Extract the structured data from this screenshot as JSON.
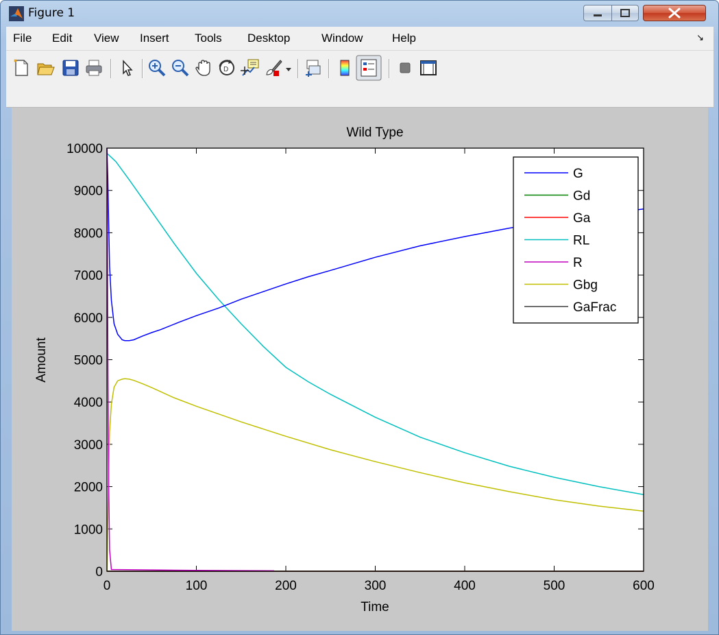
{
  "window": {
    "title": "Figure 1",
    "controls": [
      "minimize",
      "maximize",
      "close"
    ]
  },
  "menu": [
    "File",
    "Edit",
    "View",
    "Insert",
    "Tools",
    "Desktop",
    "Window",
    "Help"
  ],
  "toolbar": {
    "icons": [
      "new-file-icon",
      "open-folder-icon",
      "save-icon",
      "print-icon",
      "pointer-icon",
      "zoom-in-icon",
      "zoom-out-icon",
      "pan-hand-icon",
      "rotate-3d-icon",
      "data-cursor-icon",
      "brush-icon",
      "link-plot-icon",
      "colorbar-icon",
      "legend-icon",
      "hide-plot-tools-icon",
      "show-plot-tools-icon"
    ]
  },
  "colors": {
    "G": "#0000ff",
    "Gd": "#008000",
    "Ga": "#ff0000",
    "RL": "#00bfbf",
    "R": "#bf00bf",
    "Gbg": "#bfbf00",
    "GaFrac": "#404040",
    "figure_bg": "#c8c8c8",
    "axes_bg": "#ffffff"
  },
  "chart_data": {
    "type": "line",
    "title": "Wild Type",
    "xlabel": "Time",
    "ylabel": "Amount",
    "xlim": [
      0,
      600
    ],
    "ylim": [
      0,
      10000
    ],
    "xticks": [
      0,
      100,
      200,
      300,
      400,
      500,
      600
    ],
    "yticks": [
      0,
      1000,
      2000,
      3000,
      4000,
      5000,
      6000,
      7000,
      8000,
      9000,
      10000
    ],
    "grid": false,
    "legend_position": "top-right",
    "series": [
      {
        "name": "G",
        "x": [
          0,
          1,
          2,
          3,
          5,
          8,
          12,
          17,
          20,
          25,
          30,
          40,
          50,
          60,
          80,
          100,
          125,
          150,
          175,
          200,
          225,
          250,
          300,
          350,
          400,
          450,
          500,
          550,
          600
        ],
        "y": [
          10000,
          9300,
          8200,
          7200,
          6400,
          5850,
          5600,
          5470,
          5450,
          5450,
          5470,
          5560,
          5640,
          5710,
          5880,
          6040,
          6220,
          6430,
          6610,
          6790,
          6960,
          7110,
          7420,
          7690,
          7910,
          8110,
          8280,
          8430,
          8560
        ]
      },
      {
        "name": "Gd",
        "x": [
          0,
          600
        ],
        "y": [
          0,
          0
        ]
      },
      {
        "name": "Ga",
        "x": [
          0,
          1,
          2,
          4,
          600
        ],
        "y": [
          0,
          0,
          0,
          0,
          0
        ]
      },
      {
        "name": "RL",
        "x": [
          0,
          10,
          25,
          50,
          75,
          100,
          125,
          150,
          175,
          200,
          225,
          250,
          300,
          350,
          400,
          450,
          500,
          550,
          600
        ],
        "y": [
          9880,
          9680,
          9250,
          8500,
          7750,
          7040,
          6420,
          5850,
          5310,
          4820,
          4480,
          4180,
          3640,
          3170,
          2800,
          2480,
          2220,
          2000,
          1810
        ]
      },
      {
        "name": "R",
        "x": [
          0,
          0.3,
          0.7,
          1.2,
          2,
          3,
          5,
          50,
          100,
          150,
          187
        ],
        "y": [
          10000,
          9000,
          7000,
          4500,
          2000,
          500,
          40,
          30,
          20,
          15,
          10
        ]
      },
      {
        "name": "Gbg",
        "x": [
          0,
          1,
          2,
          3,
          5,
          8,
          12,
          17,
          20,
          25,
          30,
          40,
          50,
          75,
          100,
          150,
          200,
          250,
          300,
          350,
          400,
          450,
          500,
          550,
          600
        ],
        "y": [
          0,
          1200,
          2400,
          3300,
          3950,
          4350,
          4500,
          4540,
          4550,
          4540,
          4510,
          4430,
          4340,
          4100,
          3900,
          3530,
          3190,
          2870,
          2590,
          2330,
          2090,
          1880,
          1690,
          1540,
          1420
        ]
      },
      {
        "name": "GaFrac",
        "x": [
          0,
          600
        ],
        "y": [
          0,
          0
        ]
      }
    ]
  }
}
